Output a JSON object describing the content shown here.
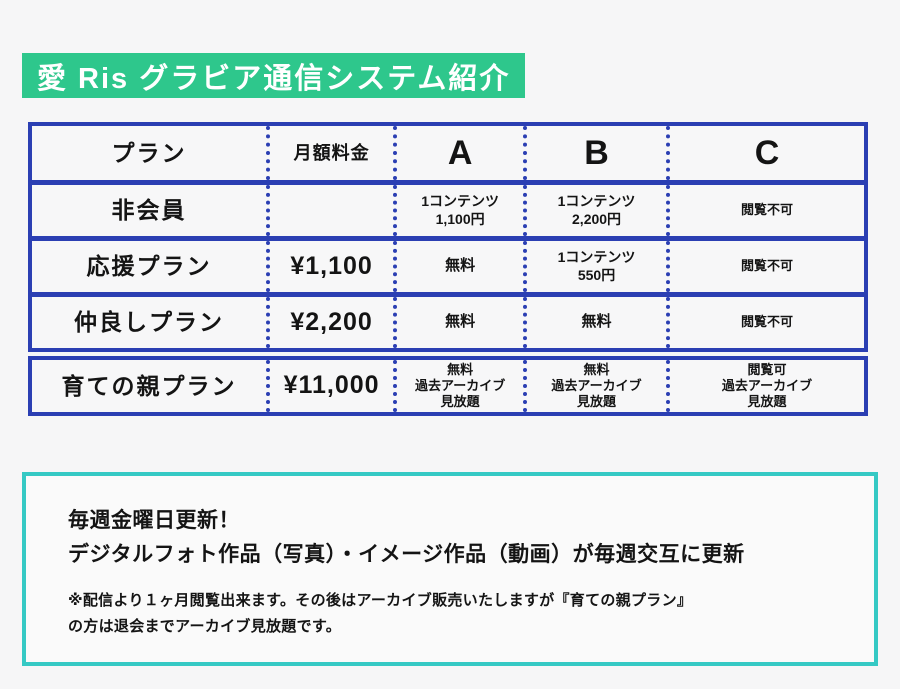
{
  "title": "愛 Ris グラビア通信システム紹介",
  "colors": {
    "title_background": "#2EC78C",
    "table_border": "#2B3FB3",
    "info_border": "#35C9C4",
    "page_background": "#F6F6F7"
  },
  "table": {
    "headers": {
      "plan": "プラン",
      "price": "月額料金",
      "a": "A",
      "b": "B",
      "c": "C"
    },
    "rows": [
      {
        "plan": "非会員",
        "price": "",
        "a": [
          "1コンテンツ",
          "1,100円"
        ],
        "b": [
          "1コンテンツ",
          "2,200円"
        ],
        "c": [
          "閲覧不可"
        ]
      },
      {
        "plan": "応援プラン",
        "price": "¥1,100",
        "a": [
          "無料"
        ],
        "b": [
          "1コンテンツ",
          "550円"
        ],
        "c": [
          "閲覧不可"
        ]
      },
      {
        "plan": "仲良しプラン",
        "price": "¥2,200",
        "a": [
          "無料"
        ],
        "b": [
          "無料"
        ],
        "c": [
          "閲覧不可"
        ]
      },
      {
        "plan": "育ての親プラン",
        "price": "¥11,000",
        "a": [
          "無料",
          "過去アーカイブ",
          "見放題"
        ],
        "b": [
          "無料",
          "過去アーカイブ",
          "見放題"
        ],
        "c": [
          "閲覧可",
          "過去アーカイブ",
          "見放題"
        ]
      }
    ]
  },
  "info": {
    "line1": "毎週金曜日更新！",
    "line2": "デジタルフォト作品（写真）・イメージ作品（動画）が毎週交互に更新",
    "note1": "※配信より１ヶ月閲覧出来ます。その後はアーカイブ販売いたしますが『育ての親プラン』",
    "note2": "の方は退会までアーカイブ見放題です。"
  }
}
